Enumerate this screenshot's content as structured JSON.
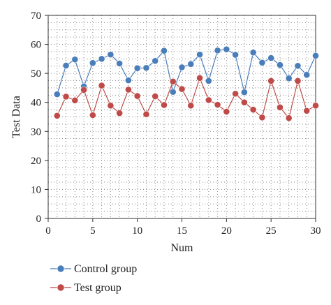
{
  "chart_data": {
    "type": "line",
    "title": "",
    "xlabel": "Num",
    "ylabel": "Test Data",
    "xlim": [
      0,
      30
    ],
    "ylim": [
      0,
      70
    ],
    "xticks": [
      0,
      5,
      10,
      15,
      20,
      25,
      30
    ],
    "yticks": [
      0,
      10,
      20,
      30,
      40,
      50,
      60,
      70
    ],
    "grid": true,
    "grid_style": "dotted",
    "legend_position": "bottom-left",
    "x": [
      1,
      2,
      3,
      4,
      5,
      6,
      7,
      8,
      9,
      10,
      11,
      12,
      13,
      14,
      15,
      16,
      17,
      18,
      19,
      20,
      21,
      22,
      23,
      24,
      25,
      26,
      27,
      28,
      29,
      30
    ],
    "series": [
      {
        "name": "Control group",
        "color": "#4a7ebb",
        "values": [
          42.8,
          52.7,
          54.8,
          45.5,
          53.6,
          55.0,
          56.5,
          53.4,
          47.6,
          51.8,
          51.9,
          54.3,
          57.8,
          43.6,
          52.1,
          53.2,
          56.5,
          47.4,
          57.9,
          58.3,
          56.4,
          43.5,
          57.2,
          53.7,
          55.3,
          52.9,
          48.3,
          52.6,
          49.5,
          56.1
        ]
      },
      {
        "name": "Test group",
        "color": "#be4b48",
        "values": [
          35.4,
          42.0,
          40.7,
          44.3,
          35.6,
          45.8,
          38.9,
          36.3,
          44.4,
          42.2,
          35.9,
          42.1,
          39.1,
          47.2,
          44.6,
          38.9,
          48.4,
          40.8,
          39.2,
          36.8,
          43.0,
          40.0,
          37.5,
          34.8,
          47.4,
          38.3,
          34.6,
          47.4,
          37.1,
          38.9
        ]
      }
    ]
  }
}
